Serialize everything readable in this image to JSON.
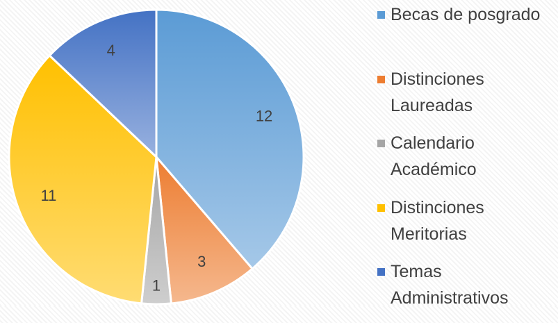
{
  "chart_data": {
    "type": "pie",
    "categories": [
      "Becas de posgrado",
      "Distinciones Laureadas",
      "Calendario Académico",
      "Distinciones Meritorias",
      "Temas Administrativos"
    ],
    "values": [
      12,
      3,
      1,
      11,
      4
    ],
    "colors": [
      "#5b9bd5",
      "#ed7d31",
      "#a5a5a5",
      "#ffc000",
      "#4472c4"
    ],
    "legend": "right"
  }
}
